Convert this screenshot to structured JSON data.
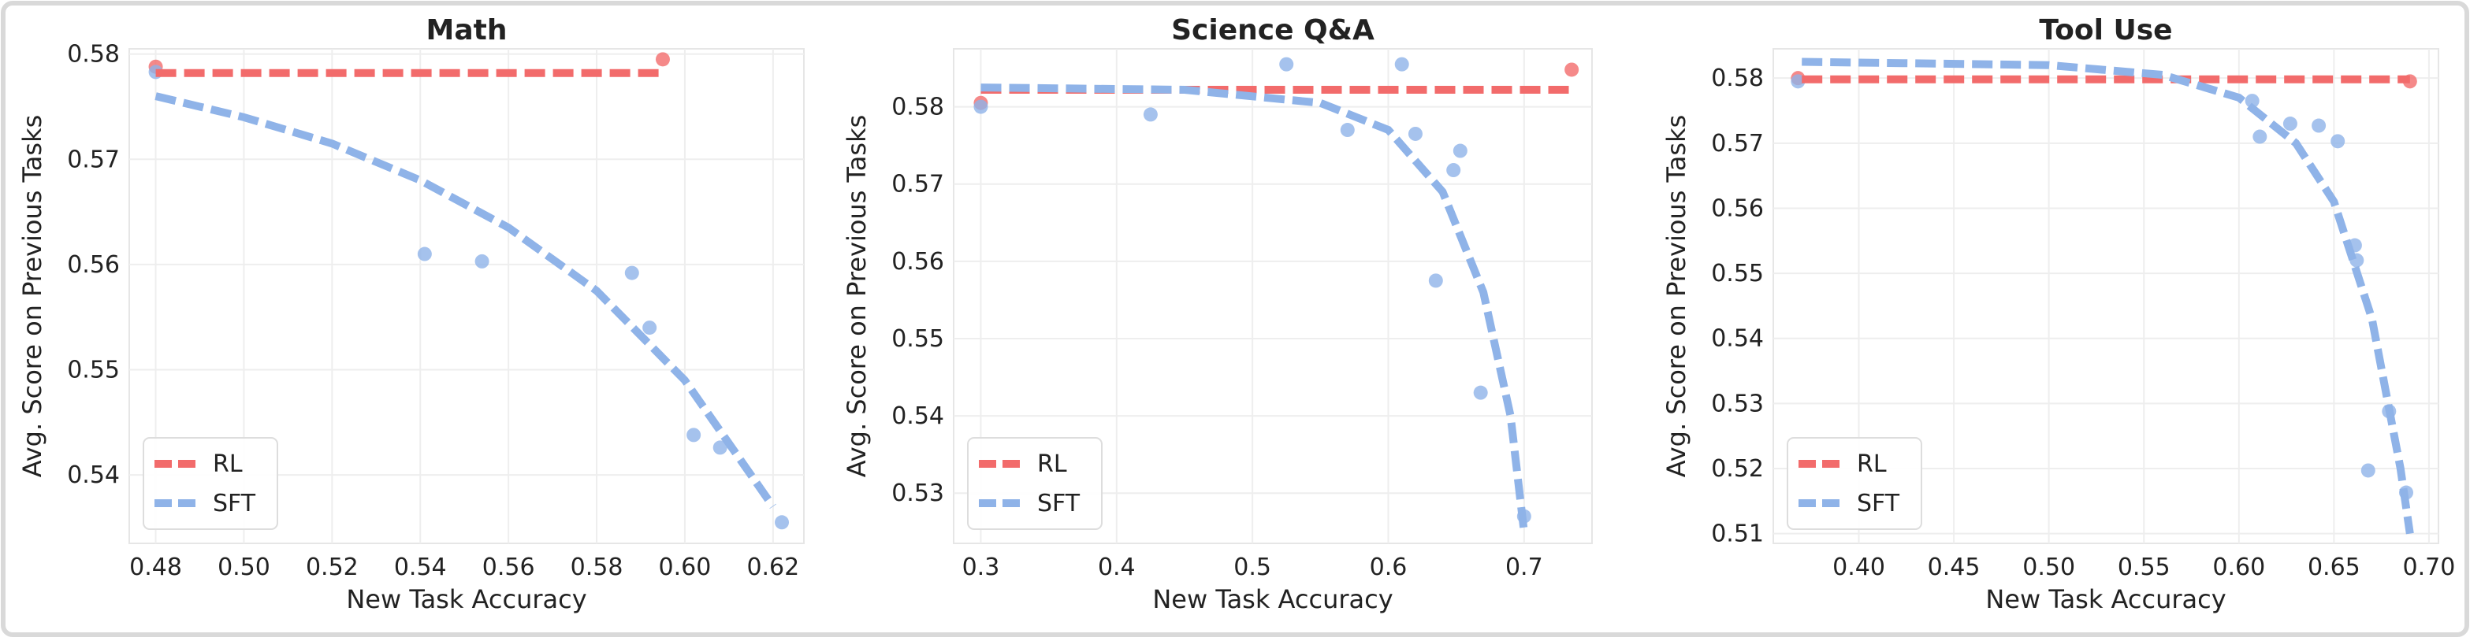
{
  "chart_data": [
    {
      "type": "scatter",
      "title": "Math",
      "xlabel": "New Task Accuracy",
      "ylabel": "Avg. Score on Previous Tasks",
      "xlim": [
        0.474,
        0.627
      ],
      "ylim": [
        0.5335,
        0.5805
      ],
      "xticks": [
        0.48,
        {
          "value": 0.5,
          "label": "0.50"
        },
        0.52,
        0.54,
        0.56,
        0.58,
        {
          "value": 0.6,
          "label": "0.60"
        },
        0.62
      ],
      "yticks": [
        0.54,
        0.55,
        0.56,
        0.57,
        0.58
      ],
      "grid": true,
      "legend": "lower left",
      "series": [
        {
          "name": "RL",
          "color": "#f26b6b",
          "x": [
            0.48,
            0.595
          ],
          "values": [
            0.5788,
            0.5795
          ],
          "fit_x": [
            0.48,
            0.595
          ],
          "fit_values": [
            0.5782,
            0.5782
          ]
        },
        {
          "name": "SFT",
          "color": "#8fb3e8",
          "x": [
            0.48,
            0.541,
            0.554,
            0.588,
            0.592,
            0.602,
            0.608,
            0.622
          ],
          "values": [
            0.5783,
            0.561,
            0.5603,
            0.5592,
            0.554,
            0.5438,
            0.5426,
            0.5355
          ],
          "fit_x": [
            0.48,
            0.5,
            0.52,
            0.54,
            0.56,
            0.58,
            0.6,
            0.62
          ],
          "fit_values": [
            0.576,
            0.574,
            0.5715,
            0.568,
            0.5635,
            0.5575,
            0.549,
            0.537
          ]
        }
      ]
    },
    {
      "type": "scatter",
      "title": "Science Q&A",
      "xlabel": "New Task Accuracy",
      "ylabel": "Avg. Score on Previous Tasks",
      "xlim": [
        0.28,
        0.75
      ],
      "ylim": [
        0.5235,
        0.5875
      ],
      "xticks": [
        0.3,
        0.4,
        0.5,
        0.6,
        0.7
      ],
      "yticks": [
        0.53,
        0.54,
        0.55,
        0.56,
        0.57,
        0.58
      ],
      "grid": true,
      "legend": "lower left",
      "series": [
        {
          "name": "RL",
          "color": "#f26b6b",
          "x": [
            0.3,
            0.735
          ],
          "values": [
            0.5805,
            0.5848
          ],
          "fit_x": [
            0.3,
            0.735
          ],
          "fit_values": [
            0.5822,
            0.5822
          ]
        },
        {
          "name": "SFT",
          "color": "#8fb3e8",
          "x": [
            0.3,
            0.425,
            0.525,
            0.57,
            0.61,
            0.62,
            0.635,
            0.648,
            0.653,
            0.668,
            0.7
          ],
          "values": [
            0.58,
            0.579,
            0.5855,
            0.577,
            0.5855,
            0.5765,
            0.5575,
            0.5718,
            0.5743,
            0.543,
            0.527
          ],
          "fit_x": [
            0.3,
            0.45,
            0.55,
            0.6,
            0.64,
            0.67,
            0.69,
            0.7
          ],
          "fit_values": [
            0.5825,
            0.5822,
            0.5805,
            0.577,
            0.569,
            0.556,
            0.54,
            0.525
          ]
        }
      ]
    },
    {
      "type": "scatter",
      "title": "Tool Use",
      "xlabel": "New Task Accuracy",
      "ylabel": "Avg. Score on Previous Tasks",
      "xlim": [
        0.355,
        0.705
      ],
      "ylim": [
        0.5085,
        0.5845
      ],
      "xticks": [
        {
          "value": 0.4,
          "label": "0.40"
        },
        0.45,
        {
          "value": 0.5,
          "label": "0.50"
        },
        0.55,
        {
          "value": 0.6,
          "label": "0.60"
        },
        0.65,
        {
          "value": 0.7,
          "label": "0.70"
        }
      ],
      "yticks": [
        0.51,
        0.52,
        0.53,
        0.54,
        0.55,
        0.56,
        0.57,
        0.58
      ],
      "grid": true,
      "legend": "lower left",
      "series": [
        {
          "name": "RL",
          "color": "#f26b6b",
          "x": [
            0.368,
            0.69
          ],
          "values": [
            0.58,
            0.5795
          ],
          "fit_x": [
            0.37,
            0.69
          ],
          "fit_values": [
            0.5798,
            0.5798
          ]
        },
        {
          "name": "SFT",
          "color": "#8fb3e8",
          "x": [
            0.368,
            0.607,
            0.611,
            0.627,
            0.642,
            0.652,
            0.661,
            0.662,
            0.679,
            0.668,
            0.688
          ],
          "values": [
            0.5795,
            0.5765,
            0.571,
            0.573,
            0.5727,
            0.5703,
            0.5543,
            0.552,
            0.5288,
            0.5197,
            0.5163
          ],
          "fit_x": [
            0.37,
            0.5,
            0.56,
            0.6,
            0.63,
            0.65,
            0.67,
            0.685,
            0.69
          ],
          "fit_values": [
            0.5825,
            0.582,
            0.5805,
            0.577,
            0.57,
            0.561,
            0.543,
            0.52,
            0.51
          ]
        }
      ]
    }
  ]
}
